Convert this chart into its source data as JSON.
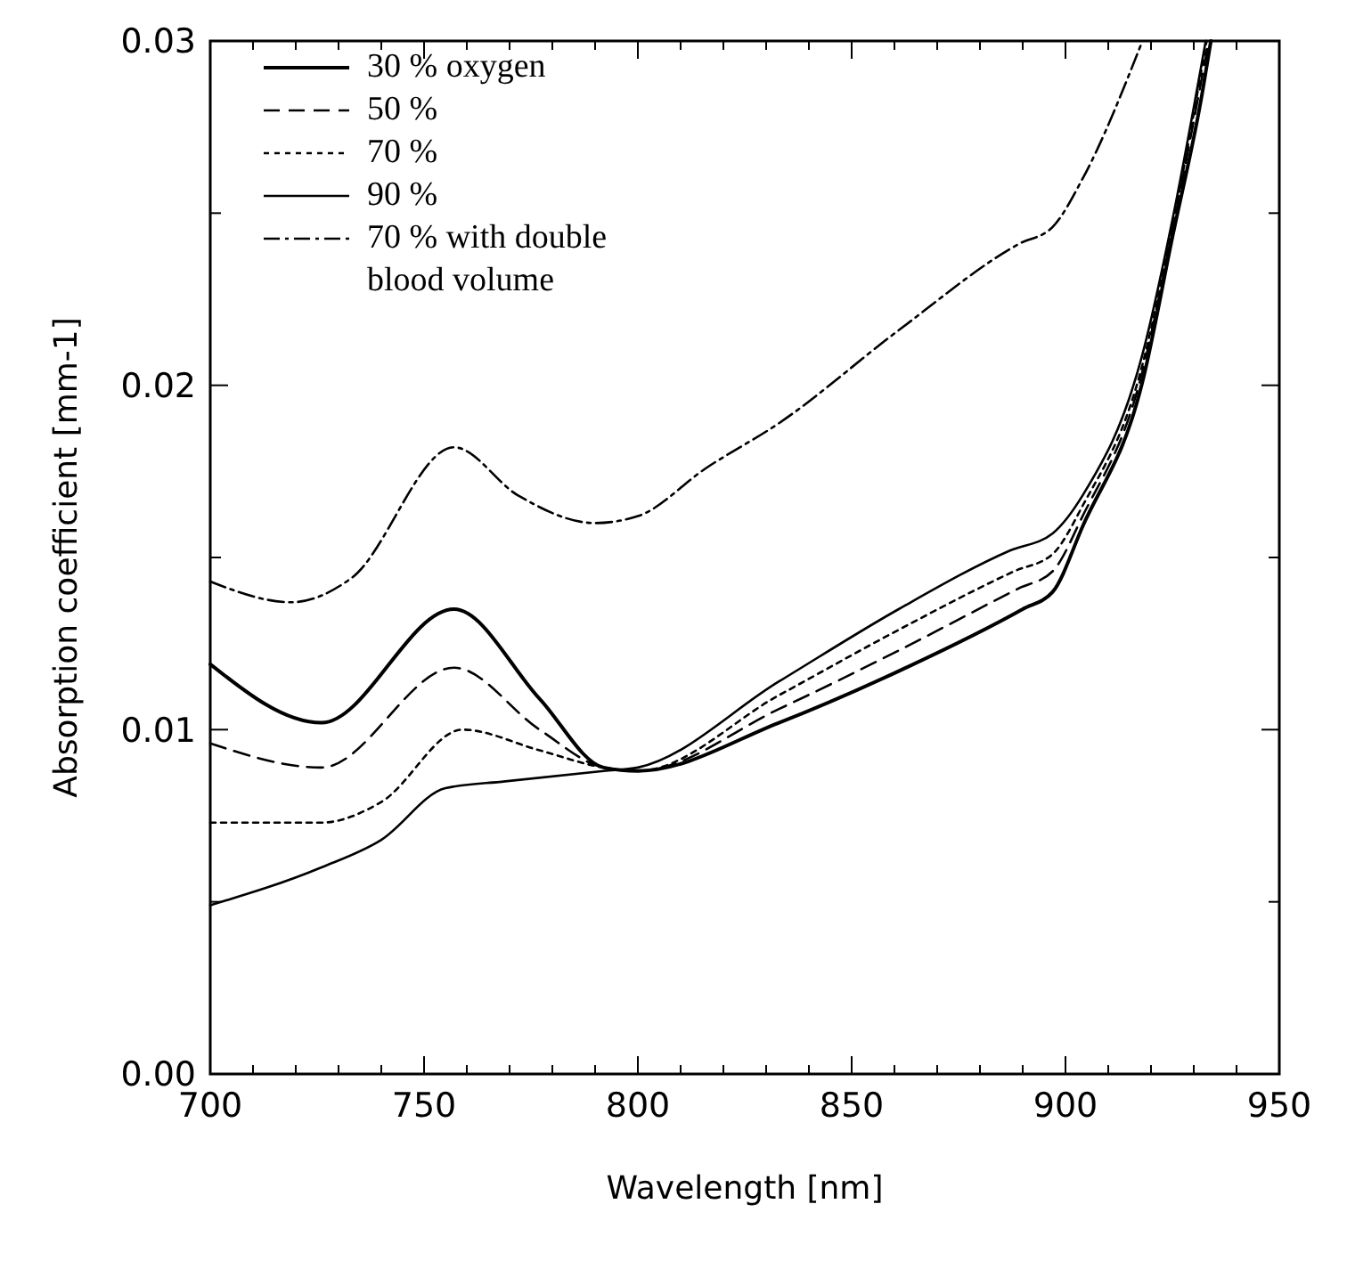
{
  "chart_data": {
    "type": "line",
    "xlabel": "Wavelength  [nm]",
    "ylabel": "Absorption coefficient  [mm-1]",
    "xlim": [
      700,
      950
    ],
    "ylim": [
      0,
      0.03
    ],
    "xticks": [
      700,
      {
        "value": 710,
        "label": null
      },
      {
        "value": 720,
        "label": null
      },
      {
        "value": 730,
        "label": null
      },
      {
        "value": 740,
        "label": null
      },
      750,
      {
        "value": 760,
        "label": null
      },
      {
        "value": 770,
        "label": null
      },
      {
        "value": 780,
        "label": null
      },
      {
        "value": 790,
        "label": null
      },
      800,
      {
        "value": 810,
        "label": null
      },
      {
        "value": 820,
        "label": null
      },
      {
        "value": 830,
        "label": null
      },
      {
        "value": 840,
        "label": null
      },
      850,
      {
        "value": 860,
        "label": null
      },
      {
        "value": 870,
        "label": null
      },
      {
        "value": 880,
        "label": null
      },
      {
        "value": 890,
        "label": null
      },
      900,
      {
        "value": 910,
        "label": null
      },
      {
        "value": 920,
        "label": null
      },
      {
        "value": 930,
        "label": null
      },
      {
        "value": 940,
        "label": null
      },
      950
    ],
    "yticks": [
      {
        "value": 0,
        "label": "0.00"
      },
      {
        "value": 0.005,
        "label": null
      },
      0.01,
      {
        "value": 0.015,
        "label": null
      },
      0.02,
      {
        "value": 0.025,
        "label": null
      },
      0.03
    ],
    "grid": false,
    "legend": "top left",
    "series": [
      {
        "name": "30 % oxygen",
        "color": "#000000",
        "line_style": "solid",
        "x": [
          700,
          726,
          757,
          777,
          792,
          800,
          833,
          861,
          890,
          897,
          904,
          918,
          925,
          932,
          934
        ],
        "values": [
          0.0119,
          0.0102,
          0.0135,
          0.0109,
          0.0089,
          0.0088,
          0.0102,
          0.0117,
          0.0135,
          0.014,
          0.0159,
          0.0201,
          0.0243,
          0.0285,
          0.03
        ]
      },
      {
        "name": "50 %",
        "color": "#000000",
        "line_style": "dashed",
        "x": [
          700,
          726,
          757,
          777,
          792,
          800,
          833,
          861,
          889,
          897,
          904,
          918,
          925,
          933.5
        ],
        "values": [
          0.0096,
          0.0089,
          0.0118,
          0.01,
          0.0089,
          0.0088,
          0.0106,
          0.0123,
          0.0141,
          0.0146,
          0.0162,
          0.0204,
          0.0245,
          0.03
        ]
      },
      {
        "name": "70 %",
        "color": "#000000",
        "line_style": "dotted",
        "x": [
          700,
          726,
          740,
          759,
          777,
          792,
          800,
          833,
          861,
          888,
          897,
          904,
          918,
          925,
          933
        ],
        "values": [
          0.0073,
          0.0073,
          0.0079,
          0.01,
          0.0094,
          0.0089,
          0.0088,
          0.011,
          0.0129,
          0.0146,
          0.0151,
          0.0165,
          0.0206,
          0.0246,
          0.03
        ]
      },
      {
        "name": "90 %",
        "color": "#000000",
        "line_style": "solid",
        "x": [
          700,
          726,
          740,
          755,
          769,
          792,
          800,
          833,
          861,
          887,
          897,
          904,
          918,
          925,
          932.8
        ],
        "values": [
          0.0049,
          0.006,
          0.0068,
          0.0083,
          0.0085,
          0.0088,
          0.0089,
          0.0114,
          0.0135,
          0.0152,
          0.0157,
          0.0168,
          0.0209,
          0.0248,
          0.03
        ]
      },
      {
        "name": "70 % with double blood volume",
        "color": "#000000",
        "line_style": "dashdot",
        "x": [
          700,
          719,
          733,
          757,
          772,
          790,
          800,
          816,
          833,
          861,
          889,
          897,
          904,
          918
        ],
        "values": [
          0.0143,
          0.0137,
          0.0144,
          0.0182,
          0.0168,
          0.016,
          0.0162,
          0.0176,
          0.0189,
          0.0216,
          0.0241,
          0.0246,
          0.026,
          0.03
        ]
      }
    ]
  }
}
